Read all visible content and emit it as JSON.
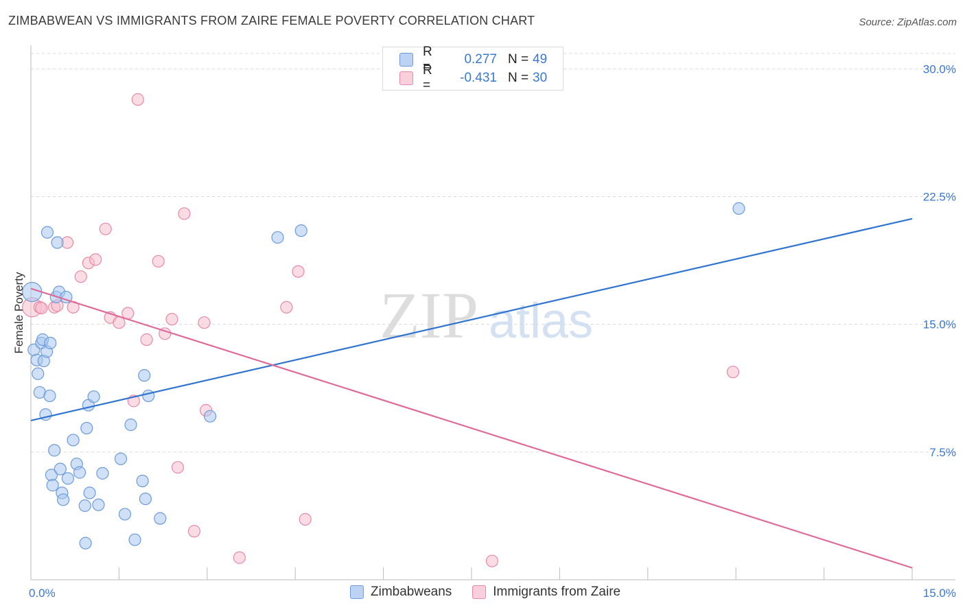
{
  "header": {
    "title": "ZIMBABWEAN VS IMMIGRANTS FROM ZAIRE FEMALE POVERTY CORRELATION CHART",
    "source": "Source: ZipAtlas.com"
  },
  "watermark": {
    "zip": "ZIP",
    "atlas": "atlas"
  },
  "legend": {
    "rows": [
      {
        "r_label": "R =",
        "r_value": "0.277",
        "n_label": "N =",
        "n_value": "49"
      },
      {
        "r_label": "R =",
        "r_value": "-0.431",
        "n_label": "N =",
        "n_value": "30"
      }
    ]
  },
  "chart_data": {
    "type": "scatter",
    "title": "ZIMBABWEAN VS IMMIGRANTS FROM ZAIRE FEMALE POVERTY CORRELATION CHART",
    "ylabel": "Female Poverty",
    "xlabel": "",
    "xlim": [
      0,
      15
    ],
    "ylim": [
      0,
      30.9
    ],
    "x_tick_labels": [
      {
        "value": 0,
        "label": "0.0%"
      },
      {
        "value": 15,
        "label": "15.0%"
      }
    ],
    "y_tick_labels": [
      {
        "value": 7.5,
        "label": "7.5%"
      },
      {
        "value": 15,
        "label": "15.0%"
      },
      {
        "value": 22.5,
        "label": "22.5%"
      },
      {
        "value": 30,
        "label": "30.0%"
      }
    ],
    "colors": {
      "blue_fill": "#a9c8f0",
      "blue_stroke": "#6c9bd8",
      "blue_line": "#2e74d0",
      "pink_fill": "#f6bfd0",
      "pink_stroke": "#e68aa8",
      "pink_line": "#e06a98",
      "grid": "#d9d9d9",
      "tick_label": "#3a78d0"
    },
    "series": [
      {
        "name": "Zimbabweans",
        "trend": {
          "x0": 0,
          "y0": 9.35,
          "x1": 15,
          "y1": 21.2
        },
        "points": [
          {
            "x": 0.02,
            "y": 16.9,
            "r": 14
          },
          {
            "x": 0.05,
            "y": 13.5
          },
          {
            "x": 0.1,
            "y": 12.9
          },
          {
            "x": 0.12,
            "y": 12.1
          },
          {
            "x": 0.15,
            "y": 11.0
          },
          {
            "x": 0.18,
            "y": 13.9
          },
          {
            "x": 0.2,
            "y": 14.1
          },
          {
            "x": 0.22,
            "y": 12.85
          },
          {
            "x": 0.25,
            "y": 9.7
          },
          {
            "x": 0.27,
            "y": 13.4
          },
          {
            "x": 0.28,
            "y": 20.4
          },
          {
            "x": 0.32,
            "y": 10.8
          },
          {
            "x": 0.33,
            "y": 13.9
          },
          {
            "x": 0.35,
            "y": 6.15
          },
          {
            "x": 0.37,
            "y": 5.55
          },
          {
            "x": 0.4,
            "y": 7.6
          },
          {
            "x": 0.43,
            "y": 16.6
          },
          {
            "x": 0.45,
            "y": 19.8
          },
          {
            "x": 0.48,
            "y": 16.9
          },
          {
            "x": 0.5,
            "y": 6.5
          },
          {
            "x": 0.53,
            "y": 5.1
          },
          {
            "x": 0.55,
            "y": 4.7
          },
          {
            "x": 0.6,
            "y": 16.6
          },
          {
            "x": 0.63,
            "y": 5.95
          },
          {
            "x": 0.72,
            "y": 8.2
          },
          {
            "x": 0.78,
            "y": 6.8
          },
          {
            "x": 0.83,
            "y": 6.3
          },
          {
            "x": 0.92,
            "y": 4.35
          },
          {
            "x": 0.93,
            "y": 2.15
          },
          {
            "x": 0.95,
            "y": 8.9
          },
          {
            "x": 0.98,
            "y": 10.25
          },
          {
            "x": 1.0,
            "y": 5.1
          },
          {
            "x": 1.07,
            "y": 10.75
          },
          {
            "x": 1.15,
            "y": 4.4
          },
          {
            "x": 1.22,
            "y": 6.25
          },
          {
            "x": 1.53,
            "y": 7.1
          },
          {
            "x": 1.6,
            "y": 3.85
          },
          {
            "x": 1.7,
            "y": 9.1
          },
          {
            "x": 1.77,
            "y": 2.35
          },
          {
            "x": 1.9,
            "y": 5.8
          },
          {
            "x": 1.93,
            "y": 12.0
          },
          {
            "x": 1.95,
            "y": 4.75
          },
          {
            "x": 2.0,
            "y": 10.8
          },
          {
            "x": 2.2,
            "y": 3.6
          },
          {
            "x": 3.05,
            "y": 9.6
          },
          {
            "x": 4.2,
            "y": 20.1
          },
          {
            "x": 4.6,
            "y": 20.5
          },
          {
            "x": 12.05,
            "y": 21.8
          }
        ]
      },
      {
        "name": "Immigrants from Zaire",
        "trend": {
          "x0": 0,
          "y0": 17.1,
          "x1": 15,
          "y1": 0.7
        },
        "points": [
          {
            "x": 0.02,
            "y": 16.0,
            "r": 14
          },
          {
            "x": 0.15,
            "y": 16.0
          },
          {
            "x": 0.18,
            "y": 15.95
          },
          {
            "x": 0.4,
            "y": 16.0
          },
          {
            "x": 0.45,
            "y": 16.1
          },
          {
            "x": 0.62,
            "y": 19.8
          },
          {
            "x": 0.72,
            "y": 16.0
          },
          {
            "x": 0.85,
            "y": 17.8
          },
          {
            "x": 0.98,
            "y": 18.6
          },
          {
            "x": 1.1,
            "y": 18.8
          },
          {
            "x": 1.27,
            "y": 20.6
          },
          {
            "x": 1.35,
            "y": 15.4
          },
          {
            "x": 1.5,
            "y": 15.1
          },
          {
            "x": 1.65,
            "y": 15.65
          },
          {
            "x": 1.82,
            "y": 28.2
          },
          {
            "x": 1.97,
            "y": 14.1
          },
          {
            "x": 1.75,
            "y": 10.5
          },
          {
            "x": 2.17,
            "y": 18.7
          },
          {
            "x": 2.28,
            "y": 14.45
          },
          {
            "x": 2.4,
            "y": 15.3
          },
          {
            "x": 2.5,
            "y": 6.6
          },
          {
            "x": 2.61,
            "y": 21.5
          },
          {
            "x": 2.78,
            "y": 2.85
          },
          {
            "x": 2.95,
            "y": 15.1
          },
          {
            "x": 2.98,
            "y": 9.95
          },
          {
            "x": 3.55,
            "y": 1.3
          },
          {
            "x": 4.35,
            "y": 16.0
          },
          {
            "x": 4.55,
            "y": 18.1
          },
          {
            "x": 4.67,
            "y": 3.55
          },
          {
            "x": 7.85,
            "y": 1.1
          },
          {
            "x": 11.95,
            "y": 12.2
          }
        ]
      }
    ]
  },
  "bottom_legend": {
    "items": [
      {
        "label": "Zimbabweans"
      },
      {
        "label": "Immigrants from Zaire"
      }
    ]
  }
}
